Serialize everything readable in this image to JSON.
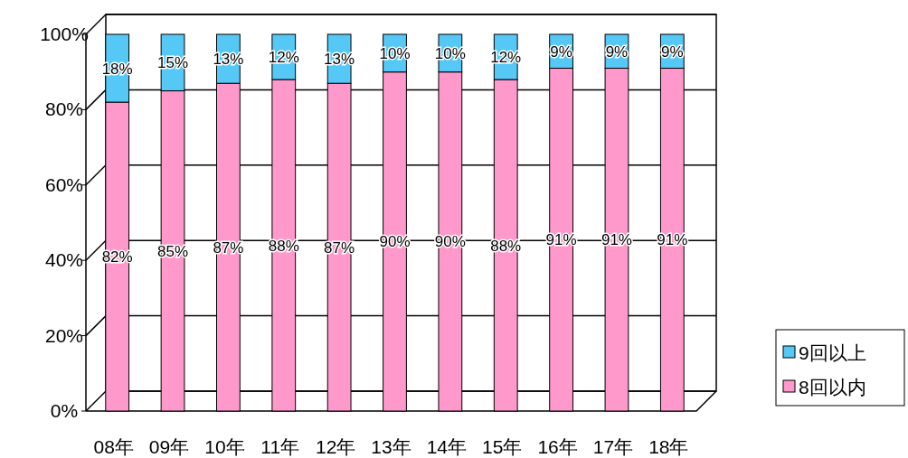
{
  "chart_data": {
    "type": "bar",
    "stacked": true,
    "categories": [
      "08年",
      "09年",
      "10年",
      "11年",
      "12年",
      "13年",
      "14年",
      "15年",
      "16年",
      "17年",
      "18年"
    ],
    "series": [
      {
        "name": "8回以内",
        "color": "#ff99cc",
        "values": [
          82,
          85,
          87,
          88,
          87,
          90,
          90,
          88,
          91,
          91,
          91
        ],
        "value_labels": [
          "82%",
          "85%",
          "87%",
          "88%",
          "87%",
          "90%",
          "90%",
          "88%",
          "91%",
          "91%",
          "91%"
        ]
      },
      {
        "name": "9回以上",
        "color": "#55c8f5",
        "values": [
          18,
          15,
          13,
          12,
          13,
          10,
          10,
          12,
          9,
          9,
          9
        ],
        "value_labels": [
          "18%",
          "15%",
          "13%",
          "12%",
          "13%",
          "10%",
          "10%",
          "12%",
          "9%",
          "9%",
          "9%"
        ]
      }
    ],
    "ylim": [
      0,
      100
    ],
    "yticks": [
      {
        "value": 0,
        "label": "0%"
      },
      {
        "value": 20,
        "label": "20%"
      },
      {
        "value": 40,
        "label": "40%"
      },
      {
        "value": 60,
        "label": "60%"
      },
      {
        "value": 80,
        "label": "80%"
      },
      {
        "value": 100,
        "label": "100%"
      }
    ],
    "grid": "y",
    "legend": "right"
  }
}
